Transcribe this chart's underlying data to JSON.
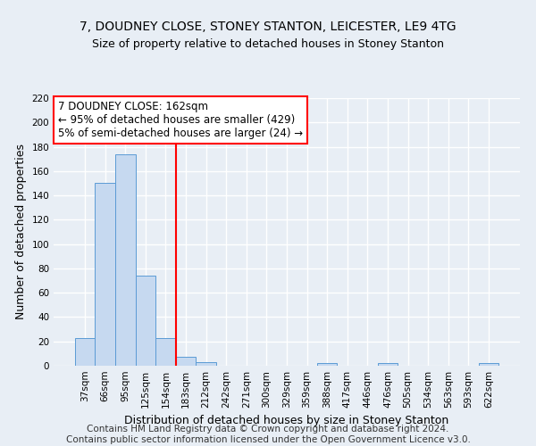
{
  "title": "7, DOUDNEY CLOSE, STONEY STANTON, LEICESTER, LE9 4TG",
  "subtitle": "Size of property relative to detached houses in Stoney Stanton",
  "xlabel": "Distribution of detached houses by size in Stoney Stanton",
  "ylabel": "Number of detached properties",
  "bin_labels": [
    "37sqm",
    "66sqm",
    "95sqm",
    "125sqm",
    "154sqm",
    "183sqm",
    "212sqm",
    "242sqm",
    "271sqm",
    "300sqm",
    "329sqm",
    "359sqm",
    "388sqm",
    "417sqm",
    "446sqm",
    "476sqm",
    "505sqm",
    "534sqm",
    "563sqm",
    "593sqm",
    "622sqm"
  ],
  "bar_values": [
    23,
    150,
    174,
    74,
    23,
    7,
    3,
    0,
    0,
    0,
    0,
    0,
    2,
    0,
    0,
    2,
    0,
    0,
    0,
    0,
    2
  ],
  "bar_color": "#c6d9f0",
  "bar_edge_color": "#5b9bd5",
  "vline_x": 4.5,
  "vline_color": "red",
  "annotation_title": "7 DOUDNEY CLOSE: 162sqm",
  "annotation_line1": "← 95% of detached houses are smaller (429)",
  "annotation_line2": "5% of semi-detached houses are larger (24) →",
  "annotation_box_color": "white",
  "annotation_box_edge": "red",
  "footer1": "Contains HM Land Registry data © Crown copyright and database right 2024.",
  "footer2": "Contains public sector information licensed under the Open Government Licence v3.0.",
  "ylim": [
    0,
    220
  ],
  "yticks": [
    0,
    20,
    40,
    60,
    80,
    100,
    120,
    140,
    160,
    180,
    200,
    220
  ],
  "background_color": "#e8eef5",
  "plot_bg_color": "#e8eef5",
  "grid_color": "white",
  "title_fontsize": 10,
  "subtitle_fontsize": 9,
  "axis_label_fontsize": 9,
  "tick_fontsize": 7.5,
  "annotation_fontsize": 8.5,
  "footer_fontsize": 7.5
}
